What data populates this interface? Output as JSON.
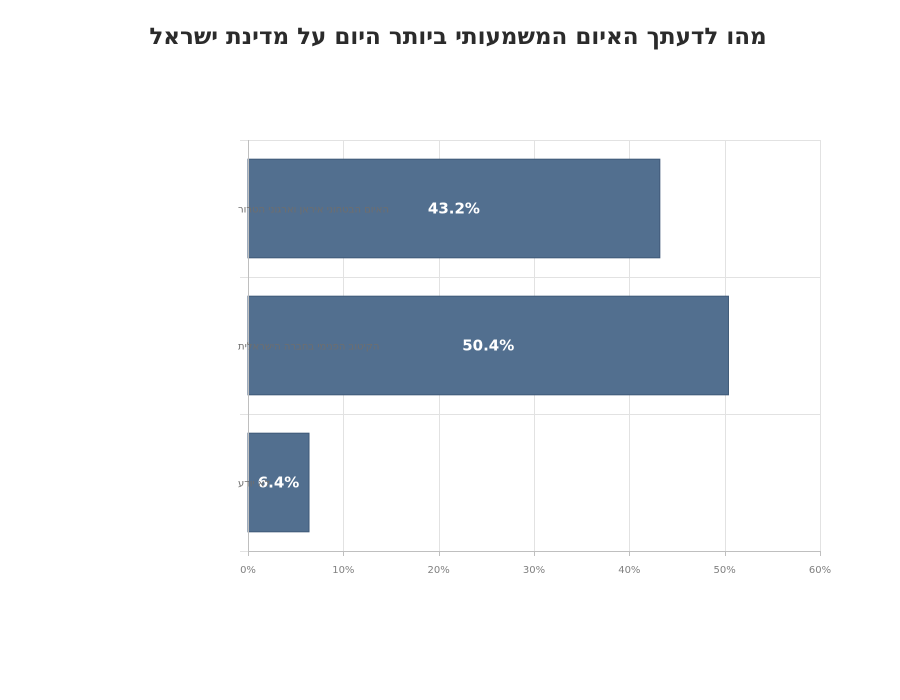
{
  "chart_data": {
    "type": "bar",
    "orientation": "horizontal",
    "title": "מהו לדעתך האיום המשמעותי ביותר היום על מדינת ישראל",
    "categories": [
      "האיום הבטחוני  איראן וארגוני הטרור",
      "הקיטוב הפנימי בחברה הישראלית",
      "לא יודע"
    ],
    "values": [
      43.2,
      50.4,
      6.4
    ],
    "data_labels": [
      "43.2%",
      "50.4%",
      "6.4%"
    ],
    "xlim": [
      0,
      60
    ],
    "x_ticks": [
      0,
      10,
      20,
      30,
      40,
      50,
      60
    ],
    "x_tick_labels": [
      "0%",
      "10%",
      "20%",
      "30%",
      "40%",
      "50%",
      "60%"
    ],
    "xlabel": "",
    "ylabel": "",
    "grid": true,
    "legend": "none",
    "colors": {
      "bar": "#526f8f",
      "bar_edge": "#3f5a78",
      "grid": "#e2e2e2",
      "axis": "#bfbfbf",
      "title": "#2b2b2b"
    }
  }
}
